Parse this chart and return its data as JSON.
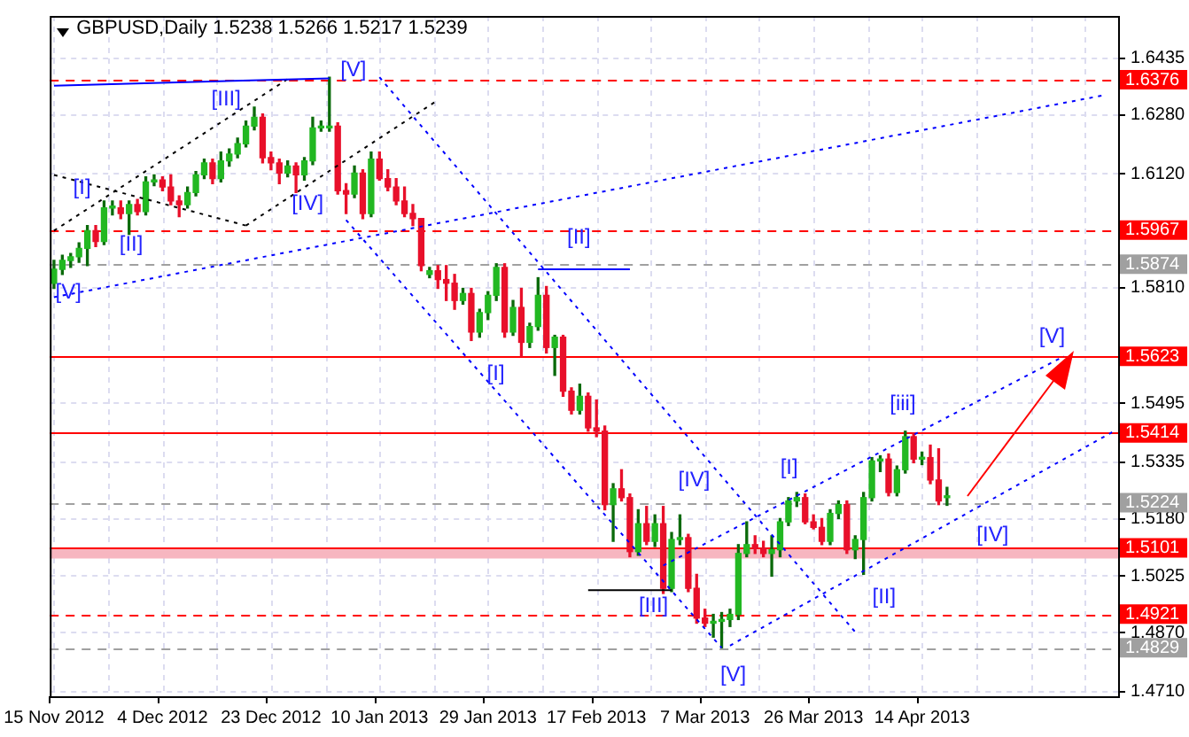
{
  "chart_data": {
    "type": "candlestick",
    "title": "GBPUSD,Daily 1.5238 1.5266 1.5217 1.5239",
    "categories": [
      "15 Nov 2012",
      null,
      null,
      null,
      null,
      null,
      null,
      null,
      null,
      null,
      null,
      null,
      null,
      "4 Dec 2012",
      null,
      null,
      null,
      null,
      null,
      null,
      null,
      null,
      null,
      null,
      null,
      null,
      "23 Dec 2012",
      null,
      null,
      null,
      null,
      null,
      null,
      null,
      null,
      null,
      null,
      null,
      null,
      "10 Jan 2013",
      null,
      null,
      null,
      null,
      null,
      null,
      null,
      null,
      null,
      null,
      null,
      null,
      "29 Jan 2013",
      null,
      null,
      null,
      null,
      null,
      null,
      null,
      null,
      null,
      null,
      null,
      null,
      "17 Feb 2013",
      null,
      null,
      null,
      null,
      null,
      null,
      null,
      null,
      null,
      null,
      null,
      null,
      "7 Mar 2013",
      null,
      null,
      null,
      null,
      null,
      null,
      null,
      null,
      null,
      null,
      null,
      null,
      "26 Mar 2013",
      null,
      null,
      null,
      null,
      null,
      null,
      null,
      null,
      null,
      null,
      null,
      null,
      "14 Apr 2013",
      null,
      null,
      null,
      null,
      null,
      null,
      null,
      null,
      null,
      null,
      null,
      null,
      null,
      null,
      null,
      null,
      null,
      null,
      null,
      null,
      null,
      null,
      null
    ],
    "ohlc": [
      [
        1.5822,
        1.5884,
        1.5808,
        1.586
      ],
      [
        1.586,
        1.5898,
        1.5846,
        1.5884
      ],
      [
        1.5884,
        1.5903,
        1.5865,
        1.5894
      ],
      [
        1.5894,
        1.5932,
        1.5879,
        1.5917
      ],
      [
        1.5917,
        1.5979,
        1.587,
        1.5965
      ],
      [
        1.5965,
        1.5979,
        1.5922,
        1.5936
      ],
      [
        1.5936,
        1.6046,
        1.5927,
        1.6027
      ],
      [
        1.6027,
        1.6046,
        1.6008,
        1.6027
      ],
      [
        1.6027,
        1.6046,
        1.5998,
        1.6012
      ],
      [
        1.6012,
        1.6046,
        1.5955,
        1.6036
      ],
      [
        1.6036,
        1.605,
        1.6008,
        1.6017
      ],
      [
        1.6017,
        1.6112,
        1.6008,
        1.6098
      ],
      [
        1.6098,
        1.6117,
        1.6088,
        1.6103
      ],
      [
        1.6103,
        1.6112,
        1.6074,
        1.6084
      ],
      [
        1.6084,
        1.6117,
        1.6036,
        1.6046
      ],
      [
        1.6046,
        1.606,
        1.6003,
        1.6036
      ],
      [
        1.6036,
        1.6084,
        1.6027,
        1.6069
      ],
      [
        1.6069,
        1.6126,
        1.606,
        1.6117
      ],
      [
        1.6117,
        1.616,
        1.6107,
        1.615
      ],
      [
        1.615,
        1.616,
        1.6093,
        1.6107
      ],
      [
        1.6107,
        1.6179,
        1.6098,
        1.6155
      ],
      [
        1.6155,
        1.6188,
        1.6141,
        1.6174
      ],
      [
        1.6174,
        1.6217,
        1.6164,
        1.6202
      ],
      [
        1.6202,
        1.6264,
        1.6193,
        1.625
      ],
      [
        1.625,
        1.6302,
        1.624,
        1.6274
      ],
      [
        1.6274,
        1.6283,
        1.615,
        1.6164
      ],
      [
        1.6164,
        1.6179,
        1.6131,
        1.615
      ],
      [
        1.615,
        1.616,
        1.6093,
        1.6122
      ],
      [
        1.6122,
        1.6155,
        1.6112,
        1.6141
      ],
      [
        1.6141,
        1.615,
        1.6069,
        1.6117
      ],
      [
        1.6117,
        1.6164,
        1.6103,
        1.6155
      ],
      [
        1.6155,
        1.6274,
        1.6145,
        1.6245
      ],
      [
        1.6245,
        1.6264,
        1.6236,
        1.625
      ],
      [
        1.6245,
        1.6383,
        1.6236,
        1.625
      ],
      [
        1.625,
        1.6259,
        1.6065,
        1.6074
      ],
      [
        1.6074,
        1.6093,
        1.6012,
        1.6065
      ],
      [
        1.6065,
        1.6141,
        1.6055,
        1.6122
      ],
      [
        1.6122,
        1.6131,
        1.5998,
        1.6012
      ],
      [
        1.6012,
        1.6179,
        1.6003,
        1.616
      ],
      [
        1.616,
        1.6179,
        1.6103,
        1.6107
      ],
      [
        1.6107,
        1.6131,
        1.6074,
        1.6084
      ],
      [
        1.6084,
        1.6107,
        1.6036,
        1.6046
      ],
      [
        1.6046,
        1.6084,
        1.6003,
        1.6012
      ],
      [
        1.6012,
        1.6036,
        1.5979,
        1.5998
      ],
      [
        1.5998,
        1.5998,
        1.5856,
        1.587
      ],
      [
        1.5846,
        1.5865,
        1.5837,
        1.5856
      ],
      [
        1.5856,
        1.587,
        1.5808,
        1.5832
      ],
      [
        1.5832,
        1.587,
        1.5775,
        1.5822
      ],
      [
        1.5822,
        1.5846,
        1.5751,
        1.5775
      ],
      [
        1.5775,
        1.5808,
        1.5765,
        1.5794
      ],
      [
        1.5794,
        1.5808,
        1.5666,
        1.5689
      ],
      [
        1.5689,
        1.5751,
        1.5675,
        1.5742
      ],
      [
        1.5742,
        1.5799,
        1.5723,
        1.5789
      ],
      [
        1.5789,
        1.5875,
        1.5775,
        1.5865
      ],
      [
        1.5865,
        1.5875,
        1.5675,
        1.5689
      ],
      [
        1.5689,
        1.5775,
        1.568,
        1.5756
      ],
      [
        1.5756,
        1.5808,
        1.5623,
        1.5661
      ],
      [
        1.5661,
        1.5713,
        1.5647,
        1.5704
      ],
      [
        1.5704,
        1.5837,
        1.5694,
        1.5789
      ],
      [
        1.5789,
        1.5813,
        1.5632,
        1.5647
      ],
      [
        1.5647,
        1.568,
        1.5571,
        1.5675
      ],
      [
        1.5675,
        1.568,
        1.5514,
        1.5528
      ],
      [
        1.5528,
        1.5537,
        1.5466,
        1.5476
      ],
      [
        1.5476,
        1.5547,
        1.5466,
        1.5514
      ],
      [
        1.5514,
        1.5523,
        1.5419,
        1.5428
      ],
      [
        1.5428,
        1.5504,
        1.5404,
        1.5419
      ],
      [
        1.5419,
        1.5433,
        1.5205,
        1.5219
      ],
      [
        1.5219,
        1.5276,
        1.5119,
        1.5262
      ],
      [
        1.5262,
        1.5314,
        1.5229,
        1.5238
      ],
      [
        1.5238,
        1.5248,
        1.5077,
        1.5091
      ],
      [
        1.5091,
        1.5205,
        1.5081,
        1.5167
      ],
      [
        1.5167,
        1.5214,
        1.511,
        1.5119
      ],
      [
        1.5119,
        1.5191,
        1.5105,
        1.5167
      ],
      [
        1.5167,
        1.5214,
        1.4977,
        1.4991
      ],
      [
        1.4991,
        1.5143,
        1.4982,
        1.5124
      ],
      [
        1.5124,
        1.5191,
        1.511,
        1.5129
      ],
      [
        1.5129,
        1.5138,
        1.4982,
        1.4991
      ],
      [
        1.4991,
        1.5029,
        1.4896,
        1.491
      ],
      [
        1.491,
        1.4934,
        1.4887,
        1.4896
      ],
      [
        1.4896,
        1.492,
        1.4858,
        1.4901
      ],
      [
        1.4901,
        1.4925,
        1.4829,
        1.4906
      ],
      [
        1.4906,
        1.4934,
        1.4887,
        1.492
      ],
      [
        1.492,
        1.511,
        1.4906,
        1.5086
      ],
      [
        1.5086,
        1.5172,
        1.5077,
        1.511
      ],
      [
        1.511,
        1.5134,
        1.5086,
        1.51
      ],
      [
        1.51,
        1.5119,
        1.5077,
        1.5086
      ],
      [
        1.5086,
        1.5134,
        1.5024,
        1.5096
      ],
      [
        1.5096,
        1.5181,
        1.5077,
        1.5172
      ],
      [
        1.5172,
        1.5238,
        1.5162,
        1.5229
      ],
      [
        1.5229,
        1.5252,
        1.5214,
        1.5238
      ],
      [
        1.5238,
        1.5248,
        1.5167,
        1.5172
      ],
      [
        1.5172,
        1.5191,
        1.5153,
        1.5157
      ],
      [
        1.5157,
        1.5181,
        1.511,
        1.5119
      ],
      [
        1.5119,
        1.5205,
        1.511,
        1.5195
      ],
      [
        1.5195,
        1.5229,
        1.5181,
        1.5219
      ],
      [
        1.5219,
        1.5229,
        1.5086,
        1.5096
      ],
      [
        1.5096,
        1.5134,
        1.5072,
        1.5124
      ],
      [
        1.5124,
        1.5252,
        1.5029,
        1.5238
      ],
      [
        1.5238,
        1.5347,
        1.5229,
        1.5338
      ],
      [
        1.5338,
        1.5352,
        1.5309,
        1.5343
      ],
      [
        1.5343,
        1.5357,
        1.5243,
        1.5252
      ],
      [
        1.5252,
        1.5324,
        1.5243,
        1.5314
      ],
      [
        1.5314,
        1.5419,
        1.5305,
        1.5404
      ],
      [
        1.5404,
        1.5414,
        1.5333,
        1.5343
      ],
      [
        1.5343,
        1.5362,
        1.5328,
        1.5347
      ],
      [
        1.5347,
        1.5381,
        1.5276,
        1.5286
      ],
      [
        1.5286,
        1.5371,
        1.5219,
        1.5229
      ],
      [
        1.5238,
        1.5266,
        1.5217,
        1.5239
      ],
      null,
      null,
      null,
      null,
      null,
      null,
      null,
      null,
      null,
      null,
      null,
      null,
      null,
      null,
      null,
      null,
      null,
      null,
      null,
      null
    ],
    "series": [
      {
        "type": "line",
        "color": "#0000ff",
        "line_style": "dotted",
        "values": [
          1.5784,
          null,
          null,
          null,
          null,
          null,
          null,
          null,
          null,
          null,
          null,
          null,
          null,
          null,
          null,
          null,
          null,
          null,
          null,
          null,
          null,
          null,
          null,
          null,
          null,
          null,
          null,
          null,
          null,
          null,
          null,
          null,
          null,
          null,
          null,
          null,
          null,
          null,
          null,
          null,
          null,
          null,
          null,
          null,
          null,
          null,
          null,
          null,
          null,
          null,
          null,
          null,
          null,
          null,
          null,
          null,
          null,
          null,
          null,
          null,
          null,
          null,
          null,
          null,
          null,
          null,
          null,
          null,
          null,
          null,
          null,
          null,
          null,
          null,
          null,
          null,
          null,
          null,
          null,
          null,
          null,
          null,
          null,
          null,
          null,
          null,
          null,
          null,
          null,
          null,
          null,
          null,
          null,
          null,
          null,
          null,
          null,
          null,
          null,
          null,
          null,
          null,
          null,
          null,
          null,
          null,
          null,
          null,
          null,
          null,
          null,
          null,
          null,
          null,
          null,
          null,
          null,
          null,
          null,
          null,
          null,
          null,
          null,
          null,
          null,
          null,
          1.6335,
          null
        ]
      },
      {
        "type": "line",
        "color": "#0000ff",
        "line_style": "solid",
        "values": [
          1.636,
          null,
          null,
          null,
          null,
          null,
          null,
          null,
          null,
          null,
          null,
          null,
          null,
          null,
          null,
          null,
          null,
          null,
          null,
          null,
          null,
          null,
          null,
          null,
          null,
          null,
          null,
          null,
          null,
          null,
          null,
          null,
          null,
          1.638,
          null,
          null,
          null,
          null,
          null,
          null,
          null,
          null,
          null,
          null,
          null,
          null,
          null,
          null,
          null,
          null,
          null,
          null,
          null,
          null,
          null,
          null,
          null,
          null,
          null,
          null,
          null,
          null,
          null,
          null,
          null,
          null,
          null,
          null,
          null,
          null,
          null,
          null,
          null,
          null,
          null,
          null,
          null,
          null,
          null,
          null,
          null,
          null,
          null,
          null,
          null,
          null,
          null,
          null,
          null,
          null,
          null,
          null,
          null,
          null,
          null,
          null,
          null,
          null,
          null,
          null,
          null,
          null,
          null,
          null,
          null,
          null,
          null,
          null,
          null,
          null,
          null,
          null,
          null,
          null,
          null,
          null,
          null,
          null,
          null,
          null,
          null,
          null,
          null,
          null,
          null,
          null,
          null,
          null
        ]
      },
      {
        "type": "line",
        "color": "#000000",
        "line_style": "dotted",
        "values": [
          1.5965,
          null,
          null,
          null,
          null,
          null,
          null,
          null,
          null,
          null,
          null,
          null,
          null,
          null,
          null,
          null,
          null,
          null,
          null,
          null,
          null,
          null,
          null,
          null,
          null,
          null,
          null,
          null,
          1.6378,
          null,
          null,
          null,
          null,
          null,
          null,
          null,
          null,
          null,
          null,
          null,
          null,
          null,
          null,
          null,
          null,
          null,
          null,
          null,
          null,
          null,
          null,
          null,
          null,
          null,
          null,
          null,
          null,
          null,
          null,
          null,
          null,
          null,
          null,
          null,
          null,
          null,
          null,
          null,
          null,
          null,
          null,
          null,
          null,
          null,
          null,
          null,
          null,
          null,
          null,
          null,
          null,
          null,
          null,
          null,
          null,
          null,
          null,
          null,
          null,
          null,
          null,
          null,
          null,
          null,
          null,
          null,
          null,
          null,
          null,
          null,
          null,
          null,
          null,
          null,
          null,
          null,
          null,
          null,
          null,
          null,
          null,
          null,
          null,
          null,
          null,
          null,
          null,
          null,
          null,
          null,
          null,
          null,
          null,
          null,
          null,
          null,
          null,
          null
        ]
      },
      {
        "type": "line",
        "color": "#000000",
        "line_style": "dotted",
        "values": [
          1.6117,
          null,
          null,
          null,
          null,
          null,
          null,
          null,
          null,
          null,
          null,
          null,
          null,
          null,
          null,
          null,
          null,
          null,
          null,
          null,
          null,
          null,
          null,
          1.5979,
          null,
          null,
          null,
          null,
          null,
          null,
          null,
          null,
          null,
          null,
          null,
          null,
          null,
          null,
          null,
          null,
          null,
          null,
          null,
          null,
          null,
          null,
          null,
          null,
          null,
          null,
          null,
          null,
          null,
          null,
          null,
          null,
          null,
          null,
          null,
          null,
          null,
          null,
          null,
          null,
          null,
          null,
          null,
          null,
          null,
          null,
          null,
          null,
          null,
          null,
          null,
          null,
          null,
          null,
          null,
          null,
          null,
          null,
          null,
          null,
          null,
          null,
          null,
          null,
          null,
          null,
          null,
          null,
          null,
          null,
          null,
          null,
          null,
          null,
          null,
          null,
          null,
          null,
          null,
          null,
          null,
          null,
          null,
          null,
          null,
          null,
          null,
          null,
          null,
          null,
          null,
          null,
          null,
          null,
          null,
          null,
          null,
          null,
          null,
          null,
          null,
          null,
          null,
          null
        ]
      },
      {
        "type": "line",
        "color": "#000000",
        "line_style": "dotted",
        "values": [
          null,
          null,
          null,
          null,
          null,
          null,
          null,
          null,
          null,
          null,
          null,
          null,
          null,
          null,
          null,
          null,
          null,
          null,
          null,
          null,
          null,
          null,
          null,
          1.5979,
          null,
          null,
          null,
          null,
          null,
          null,
          null,
          null,
          null,
          null,
          null,
          null,
          null,
          null,
          null,
          null,
          null,
          null,
          null,
          null,
          null,
          null,
          1.6321,
          null,
          null,
          null,
          null,
          null,
          null,
          null,
          null,
          null,
          null,
          null,
          null,
          null,
          null,
          null,
          null,
          null,
          null,
          null,
          null,
          null,
          null,
          null,
          null,
          null,
          null,
          null,
          null,
          null,
          null,
          null,
          null,
          null,
          null,
          null,
          null,
          null,
          null,
          null,
          null,
          null,
          null,
          null,
          null,
          null,
          null,
          null,
          null,
          null,
          null,
          null,
          null,
          null,
          null,
          null,
          null,
          null,
          null,
          null,
          null,
          null,
          null,
          null,
          null,
          null,
          null,
          null,
          null,
          null,
          null,
          null,
          null,
          null,
          null,
          null,
          null,
          null,
          null,
          null,
          null,
          null
        ]
      },
      {
        "type": "line",
        "color": "#0000ff",
        "line_style": "dotted",
        "values": [
          null,
          null,
          null,
          null,
          null,
          null,
          null,
          null,
          null,
          null,
          null,
          null,
          null,
          null,
          null,
          null,
          null,
          null,
          null,
          null,
          null,
          null,
          null,
          null,
          null,
          null,
          null,
          null,
          null,
          null,
          null,
          null,
          null,
          null,
          null,
          null,
          null,
          null,
          null,
          1.6383,
          null,
          null,
          null,
          null,
          null,
          null,
          null,
          null,
          null,
          null,
          null,
          null,
          null,
          null,
          null,
          null,
          null,
          null,
          null,
          null,
          null,
          null,
          null,
          null,
          null,
          null,
          null,
          null,
          null,
          null,
          null,
          null,
          null,
          null,
          null,
          null,
          null,
          null,
          null,
          null,
          null,
          null,
          null,
          null,
          null,
          null,
          null,
          null,
          null,
          null,
          null,
          null,
          null,
          null,
          null,
          null,
          1.4872,
          null,
          null,
          null,
          null,
          null,
          null,
          null,
          null,
          null,
          null,
          null,
          null,
          null,
          null,
          null,
          null,
          null,
          null,
          null,
          null,
          null,
          null,
          null,
          null,
          null,
          null,
          null,
          null,
          null,
          null,
          null
        ]
      },
      {
        "type": "line",
        "color": "#0000ff",
        "line_style": "dotted",
        "values": [
          null,
          null,
          null,
          null,
          null,
          null,
          null,
          null,
          null,
          null,
          null,
          null,
          null,
          null,
          null,
          null,
          null,
          null,
          null,
          null,
          null,
          null,
          null,
          null,
          null,
          null,
          null,
          null,
          null,
          null,
          null,
          null,
          null,
          null,
          null,
          1.5994,
          null,
          null,
          null,
          null,
          null,
          null,
          null,
          null,
          null,
          null,
          null,
          null,
          null,
          null,
          null,
          null,
          null,
          null,
          null,
          null,
          null,
          null,
          null,
          null,
          null,
          null,
          null,
          null,
          null,
          null,
          null,
          null,
          null,
          null,
          null,
          null,
          null,
          null,
          null,
          null,
          null,
          null,
          null,
          null,
          1.4829,
          null,
          null,
          null,
          null,
          null,
          null,
          null,
          null,
          null,
          null,
          null,
          null,
          null,
          null,
          null,
          null,
          null,
          null,
          null,
          null,
          null,
          null,
          null,
          null,
          null,
          null,
          null,
          null,
          null,
          null,
          null,
          null,
          null,
          null,
          null,
          null,
          null,
          null,
          null,
          null,
          null,
          null,
          null,
          null,
          null,
          null,
          null
        ]
      },
      {
        "type": "line",
        "color": "#0000ff",
        "line_style": "dotted",
        "values": [
          null,
          null,
          null,
          null,
          null,
          null,
          null,
          null,
          null,
          null,
          null,
          null,
          null,
          null,
          null,
          null,
          null,
          null,
          null,
          null,
          null,
          null,
          null,
          null,
          null,
          null,
          null,
          null,
          null,
          null,
          null,
          null,
          null,
          null,
          null,
          null,
          null,
          null,
          null,
          null,
          null,
          null,
          null,
          null,
          null,
          null,
          null,
          null,
          null,
          null,
          null,
          null,
          null,
          null,
          null,
          null,
          null,
          null,
          null,
          null,
          null,
          null,
          null,
          null,
          null,
          null,
          null,
          null,
          null,
          null,
          null,
          null,
          null,
          null,
          null,
          null,
          null,
          null,
          null,
          null,
          null,
          1.4835,
          null,
          null,
          null,
          null,
          null,
          null,
          null,
          null,
          null,
          null,
          null,
          null,
          null,
          null,
          null,
          null,
          null,
          null,
          null,
          null,
          null,
          null,
          null,
          null,
          null,
          null,
          null,
          null,
          null,
          null,
          null,
          null,
          null,
          null,
          null,
          null,
          null,
          null,
          null,
          null,
          null,
          null,
          null,
          null,
          null,
          1.5419
        ]
      },
      {
        "type": "line",
        "color": "#0000ff",
        "line_style": "dotted",
        "values": [
          null,
          null,
          null,
          null,
          null,
          null,
          null,
          null,
          null,
          null,
          null,
          null,
          null,
          null,
          null,
          null,
          null,
          null,
          null,
          null,
          null,
          null,
          null,
          null,
          null,
          null,
          null,
          null,
          null,
          null,
          null,
          null,
          null,
          null,
          null,
          null,
          null,
          null,
          null,
          null,
          null,
          null,
          null,
          null,
          null,
          null,
          null,
          null,
          null,
          null,
          null,
          null,
          null,
          null,
          null,
          null,
          null,
          null,
          null,
          null,
          null,
          null,
          null,
          null,
          null,
          null,
          null,
          null,
          null,
          null,
          null,
          null,
          null,
          1.5053,
          null,
          null,
          null,
          null,
          null,
          null,
          null,
          null,
          null,
          null,
          null,
          null,
          null,
          null,
          null,
          null,
          null,
          null,
          null,
          null,
          null,
          null,
          null,
          null,
          null,
          null,
          null,
          null,
          null,
          null,
          null,
          null,
          null,
          null,
          null,
          null,
          null,
          null,
          null,
          null,
          null,
          null,
          null,
          null,
          null,
          null,
          null,
          1.5623,
          null,
          null,
          null,
          null,
          null,
          null
        ]
      },
      {
        "type": "line",
        "color": "#0000ff",
        "line_style": "solid",
        "values": [
          null,
          null,
          null,
          null,
          null,
          null,
          null,
          null,
          null,
          null,
          null,
          null,
          null,
          null,
          null,
          null,
          null,
          null,
          null,
          null,
          null,
          null,
          null,
          null,
          null,
          null,
          null,
          null,
          null,
          null,
          null,
          null,
          null,
          null,
          null,
          null,
          null,
          null,
          null,
          null,
          null,
          null,
          null,
          null,
          null,
          null,
          null,
          null,
          null,
          null,
          null,
          null,
          null,
          null,
          null,
          null,
          null,
          null,
          1.586,
          null,
          null,
          null,
          null,
          null,
          null,
          null,
          null,
          null,
          null,
          1.586,
          null,
          null,
          null,
          null,
          null,
          null,
          null,
          null,
          null,
          null,
          null,
          null,
          null,
          null,
          null,
          null,
          null,
          null,
          null,
          null,
          null,
          null,
          null,
          null,
          null,
          null,
          null,
          null,
          null,
          null,
          null,
          null,
          null,
          null,
          null,
          null,
          null,
          null,
          null,
          null,
          null,
          null,
          null,
          null,
          null,
          null,
          null,
          null,
          null,
          null,
          null,
          null,
          null,
          null,
          null,
          null,
          null,
          null
        ]
      },
      {
        "type": "line",
        "color": "#000000",
        "line_style": "solid",
        "values": [
          null,
          null,
          null,
          null,
          null,
          null,
          null,
          null,
          null,
          null,
          null,
          null,
          null,
          null,
          null,
          null,
          null,
          null,
          null,
          null,
          null,
          null,
          null,
          null,
          null,
          null,
          null,
          null,
          null,
          null,
          null,
          null,
          null,
          null,
          null,
          null,
          null,
          null,
          null,
          null,
          null,
          null,
          null,
          null,
          null,
          null,
          null,
          null,
          null,
          null,
          null,
          null,
          null,
          null,
          null,
          null,
          null,
          null,
          null,
          null,
          null,
          null,
          null,
          null,
          1.4986,
          null,
          null,
          null,
          null,
          null,
          null,
          null,
          null,
          null,
          1.4986,
          null,
          null,
          null,
          null,
          null,
          null,
          null,
          null,
          null,
          null,
          null,
          null,
          null,
          null,
          null,
          null,
          null,
          null,
          null,
          null,
          null,
          null,
          null,
          null,
          null,
          null,
          null,
          null,
          null,
          null,
          null,
          null,
          null,
          null,
          null,
          null,
          null,
          null,
          null,
          null,
          null,
          null,
          null,
          null,
          null,
          null,
          null,
          null,
          null,
          null,
          null,
          null,
          null
        ]
      }
    ],
    "ref_lines": [
      {
        "axis": "y",
        "value": 1.6376,
        "label": "1.6376",
        "color": "#ff0000",
        "line_style": "dashed"
      },
      {
        "axis": "y",
        "value": 1.5967,
        "label": "1.5967",
        "color": "#ff0000",
        "line_style": "dashed"
      },
      {
        "axis": "y",
        "value": 1.5874,
        "label": "1.5874",
        "color": "#a0a0a0",
        "line_style": "dashed"
      },
      {
        "axis": "y",
        "value": 1.5623,
        "label": "1.5623",
        "color": "#ff0000",
        "line_style": "solid"
      },
      {
        "axis": "y",
        "value": 1.5414,
        "label": "1.5414",
        "color": "#ff0000",
        "line_style": "solid"
      },
      {
        "axis": "y",
        "value": 1.5224,
        "label": "1.5224",
        "color": "#a0a0a0",
        "line_style": "dashed"
      },
      {
        "axis": "y",
        "value": 1.5101,
        "label": "1.5101",
        "color": "#ff0000",
        "line_style": "solid"
      },
      {
        "axis": "y",
        "value": 1.4921,
        "label": "1.4921",
        "color": "#ff0000",
        "line_style": "dashed"
      },
      {
        "axis": "y",
        "value": 1.4829,
        "label": "1.4829",
        "color": "#a0a0a0",
        "line_style": "dashed"
      }
    ],
    "bands": [
      {
        "axis": "y",
        "from": 1.5072,
        "to": 1.5101,
        "color": "#f7b6c0"
      }
    ],
    "annotations": [
      "[I]",
      "[II]",
      "[III]",
      "[IV]",
      {
        "text": "[V]",
        "y": 1.6383
      },
      "[V]",
      "[II]",
      "[I]",
      "[IV]",
      "[III]",
      "[V]",
      "[I]",
      "[iii]",
      "[II]",
      "[IV]",
      "[V]"
    ],
    "ylim": [
      1.4697,
      1.655
    ],
    "yticks": [
      1.6435,
      {
        "value": 1.628,
        "label": "1.6280"
      },
      {
        "value": 1.612,
        "label": "1.6120"
      },
      {
        "value": 1.581,
        "label": "1.5810"
      },
      1.5495,
      1.5335,
      {
        "value": 1.518,
        "label": "1.5180"
      },
      1.5025,
      {
        "value": 1.487,
        "label": "1.4870"
      },
      {
        "value": 1.471,
        "label": "1.4710"
      }
    ],
    "grid": true
  }
}
